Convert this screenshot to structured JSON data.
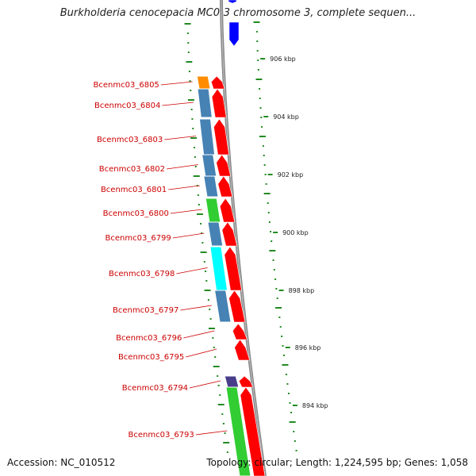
{
  "title": "Burkholderia cenocepacia MC0-3 chromosome 3, complete sequen...",
  "footer": {
    "accession": "Accession: NC_010512",
    "topology": "Topology: circular; Length: 1,224,595 bp; Genes: 1,058"
  },
  "scale": {
    "ticks": [
      "906 kbp",
      "904 kbp",
      "902 kbp",
      "900 kbp",
      "898 kbp",
      "896 kbp",
      "894 kbp"
    ]
  },
  "genes": [
    {
      "name": "Bcenmc03_6805",
      "cog_color": "#ff8c00"
    },
    {
      "name": "Bcenmc03_6804",
      "cog_color": "#4682b4"
    },
    {
      "name": "Bcenmc03_6803",
      "cog_color": "#4682b4"
    },
    {
      "name": "Bcenmc03_6802",
      "cog_color": "#4682b4"
    },
    {
      "name": "Bcenmc03_6801",
      "cog_color": "#4682b4"
    },
    {
      "name": "Bcenmc03_6800",
      "cog_color": "#32cd32"
    },
    {
      "name": "Bcenmc03_6799",
      "cog_color": "#4682b4"
    },
    {
      "name": "Bcenmc03_6798",
      "cog_color": "#00ffff"
    },
    {
      "name": "Bcenmc03_6797",
      "cog_color": "#4682b4"
    },
    {
      "name": "Bcenmc03_6796",
      "cog_color": ""
    },
    {
      "name": "Bcenmc03_6795",
      "cog_color": ""
    },
    {
      "name": "Bcenmc03_6794",
      "cog_color": "#483d8b"
    },
    {
      "name": "Bcenmc03_6793",
      "cog_color": "#32cd32"
    }
  ],
  "colors": {
    "cds_forward": "#ff0000",
    "cds_reverse": "#0000ff",
    "backbone": "#888888",
    "tick_marks": "#228b22",
    "label_text": "#cc0000"
  }
}
